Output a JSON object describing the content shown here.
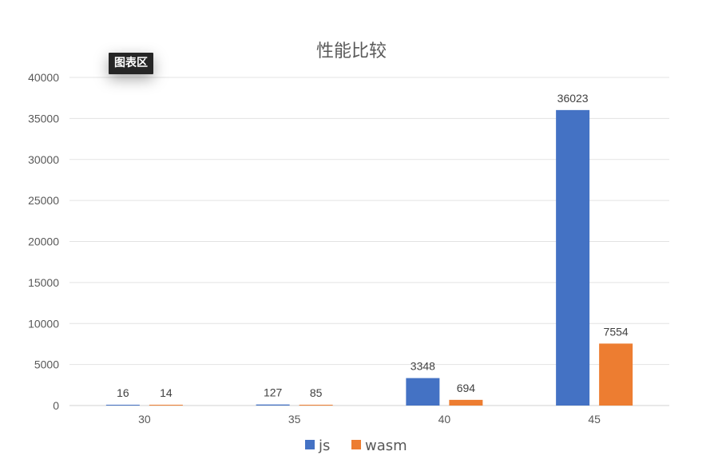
{
  "chart_data": {
    "type": "bar",
    "title": "性能比较",
    "categories": [
      "30",
      "35",
      "40",
      "45"
    ],
    "series": [
      {
        "name": "js",
        "color": "#4472C4",
        "values": [
          16,
          127,
          3348,
          36023
        ]
      },
      {
        "name": "wasm",
        "color": "#ED7D31",
        "values": [
          14,
          85,
          694,
          7554
        ]
      }
    ],
    "ylim": [
      0,
      40000
    ],
    "yticks": [
      "0",
      "5000",
      "10000",
      "15000",
      "20000",
      "25000",
      "30000",
      "35000",
      "40000"
    ],
    "ytick_values": [
      0,
      5000,
      10000,
      15000,
      20000,
      25000,
      30000,
      35000,
      40000
    ],
    "grid": true,
    "legend_position": "bottom",
    "data_labels": true
  },
  "tooltip": {
    "text": "图表区"
  }
}
